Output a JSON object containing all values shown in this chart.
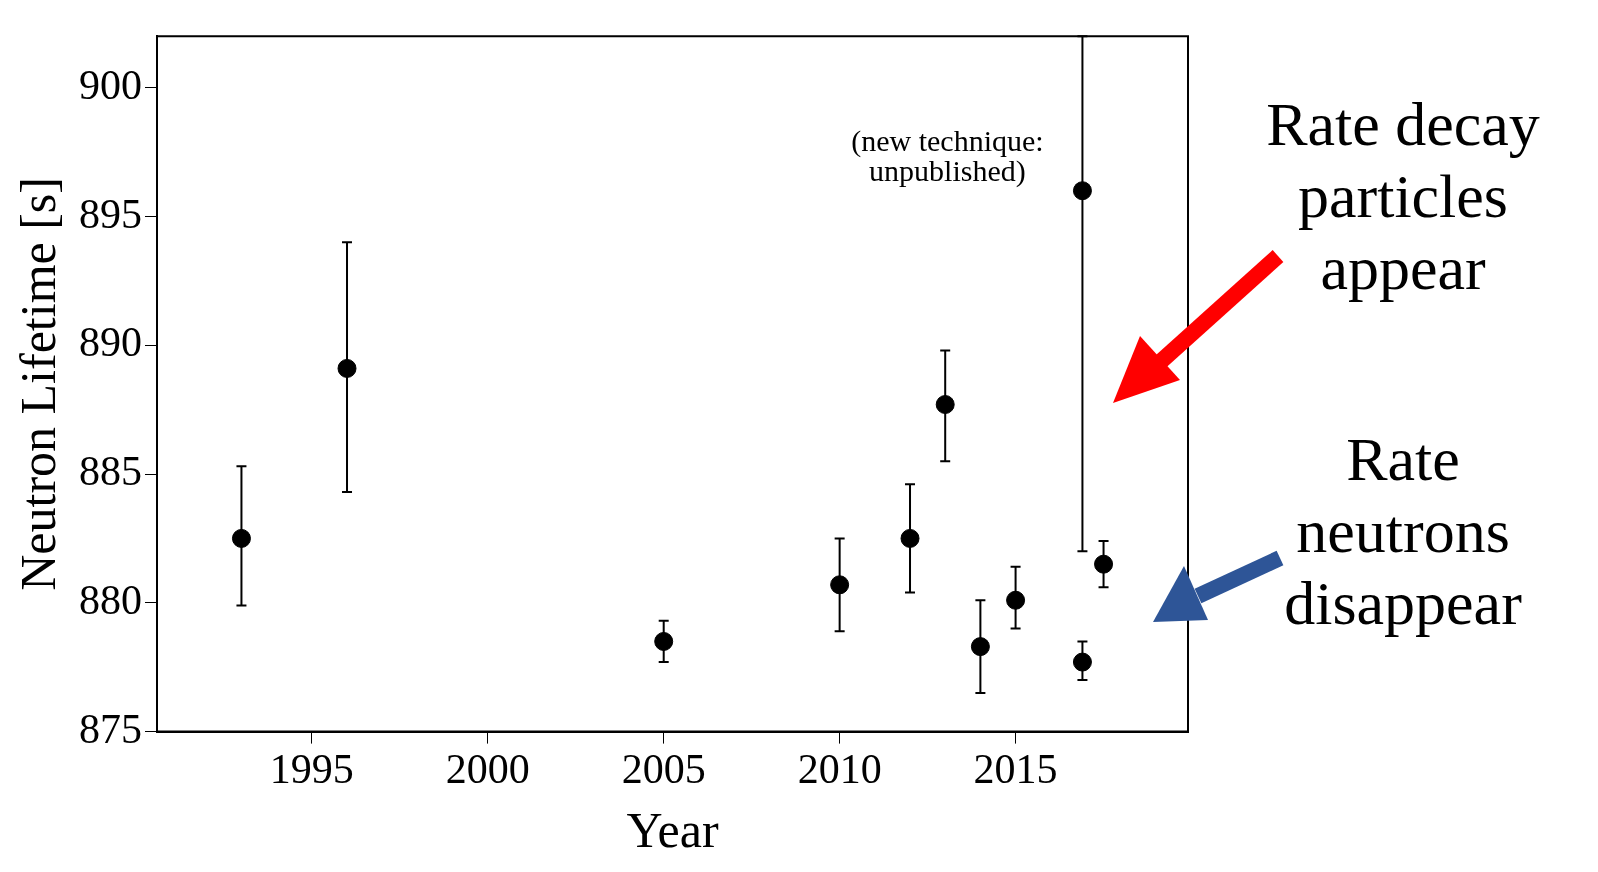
{
  "chart_data": {
    "type": "scatter",
    "xlabel": "Year",
    "ylabel": "Neutron Lifetime [s]",
    "x": [
      1993,
      1996,
      2005,
      2010,
      2012,
      2013,
      2014,
      2015,
      2016.9,
      2016.9,
      2017.5
    ],
    "values": [
      882.5,
      889.1,
      878.5,
      880.7,
      882.5,
      887.7,
      878.3,
      880.1,
      896,
      877.7,
      881.5
    ],
    "errors": [
      [
        879.9,
        885.3
      ],
      [
        884.3,
        894
      ],
      [
        877.7,
        879.3
      ],
      [
        878.9,
        882.5
      ],
      [
        880.4,
        884.6
      ],
      [
        885.5,
        889.8
      ],
      [
        876.5,
        880.1
      ],
      [
        879,
        881.4
      ],
      [
        882,
        902
      ],
      [
        877,
        878.5
      ],
      [
        880.6,
        882.4
      ]
    ],
    "color": "#000000",
    "marker": "circle",
    "xlim": [
      1990.6,
      2019.9
    ],
    "xticks": [
      1995,
      2000,
      2005,
      2010,
      2015
    ],
    "ylim": [
      875,
      902
    ],
    "yticks": [
      875,
      880,
      885,
      890,
      895,
      900
    ],
    "grid": false,
    "legend": false,
    "annotations": [
      {
        "text": "(new technique:\nunpublished)",
        "x": 2016.9,
        "y": 896
      },
      "Rate decay\nparticles\nappear",
      "Rate\nneutrons\ndisappear"
    ]
  }
}
